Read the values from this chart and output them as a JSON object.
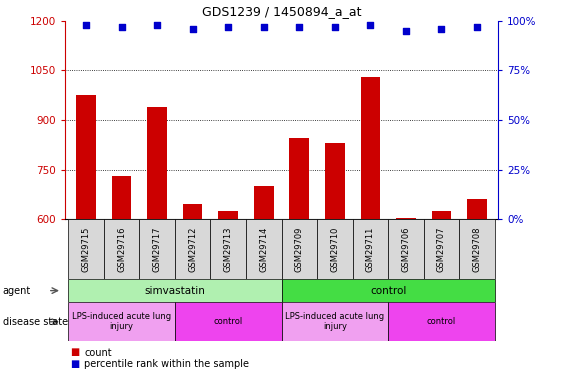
{
  "title": "GDS1239 / 1450894_a_at",
  "samples": [
    "GSM29715",
    "GSM29716",
    "GSM29717",
    "GSM29712",
    "GSM29713",
    "GSM29714",
    "GSM29709",
    "GSM29710",
    "GSM29711",
    "GSM29706",
    "GSM29707",
    "GSM29708"
  ],
  "counts": [
    975,
    730,
    940,
    645,
    625,
    700,
    845,
    830,
    1030,
    605,
    625,
    660
  ],
  "percentile": [
    98,
    97,
    98,
    96,
    97,
    97,
    97,
    97,
    98,
    95,
    96,
    97
  ],
  "bar_color": "#cc0000",
  "dot_color": "#0000cc",
  "ylim_left": [
    600,
    1200
  ],
  "ylim_right": [
    0,
    100
  ],
  "yticks_left": [
    600,
    750,
    900,
    1050,
    1200
  ],
  "yticks_right": [
    0,
    25,
    50,
    75,
    100
  ],
  "agent_groups": [
    {
      "label": "simvastatin",
      "start": 0,
      "end": 6,
      "color": "#b0f0b0"
    },
    {
      "label": "control",
      "start": 6,
      "end": 12,
      "color": "#44dd44"
    }
  ],
  "disease_groups": [
    {
      "label": "LPS-induced acute lung\ninjury",
      "start": 0,
      "end": 3,
      "color": "#f0a0f0"
    },
    {
      "label": "control",
      "start": 3,
      "end": 6,
      "color": "#ee44ee"
    },
    {
      "label": "LPS-induced acute lung\ninjury",
      "start": 6,
      "end": 9,
      "color": "#f0a0f0"
    },
    {
      "label": "control",
      "start": 9,
      "end": 12,
      "color": "#ee44ee"
    }
  ],
  "left_axis_color": "#cc0000",
  "right_axis_color": "#0000cc",
  "gridline_color": "#000000",
  "gridline_values": [
    750,
    900,
    1050
  ]
}
